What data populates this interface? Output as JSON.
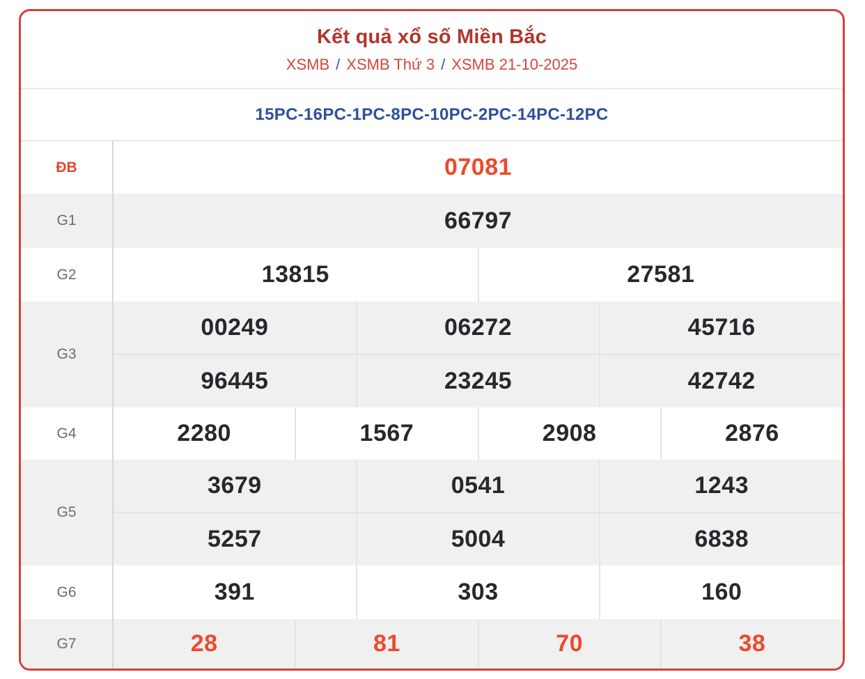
{
  "header": {
    "title": "Kết quả xổ số Miền Bắc",
    "breadcrumb": [
      "XSMB",
      "XSMB Thứ 3",
      "XSMB 21-10-2025"
    ],
    "separator": "/"
  },
  "loto_codes": "15PC-16PC-1PC-8PC-10PC-2PC-14PC-12PC",
  "results": [
    {
      "label": "ĐB",
      "highlight": true,
      "rows": [
        [
          "07081"
        ]
      ]
    },
    {
      "label": "G1",
      "highlight": false,
      "rows": [
        [
          "66797"
        ]
      ]
    },
    {
      "label": "G2",
      "highlight": false,
      "rows": [
        [
          "13815",
          "27581"
        ]
      ]
    },
    {
      "label": "G3",
      "highlight": false,
      "rows": [
        [
          "00249",
          "06272",
          "45716"
        ],
        [
          "96445",
          "23245",
          "42742"
        ]
      ]
    },
    {
      "label": "G4",
      "highlight": false,
      "rows": [
        [
          "2280",
          "1567",
          "2908",
          "2876"
        ]
      ]
    },
    {
      "label": "G5",
      "highlight": false,
      "rows": [
        [
          "3679",
          "0541",
          "1243"
        ],
        [
          "5257",
          "5004",
          "6838"
        ]
      ]
    },
    {
      "label": "G6",
      "highlight": false,
      "rows": [
        [
          "391",
          "303",
          "160"
        ]
      ]
    },
    {
      "label": "G7",
      "highlight": true,
      "rows": [
        [
          "28",
          "81",
          "70",
          "38"
        ]
      ]
    }
  ],
  "colors": {
    "card_border": "#d14238",
    "title": "#b0362c",
    "breadcrumb_link": "#d2473d",
    "breadcrumb_separator": "#35589f",
    "loto_codes": "#2f4f9e",
    "number": "#25282c",
    "highlight": "#eb4b2d",
    "row_alt_background": "#f0f0f0",
    "label": "#6d6d6d"
  }
}
